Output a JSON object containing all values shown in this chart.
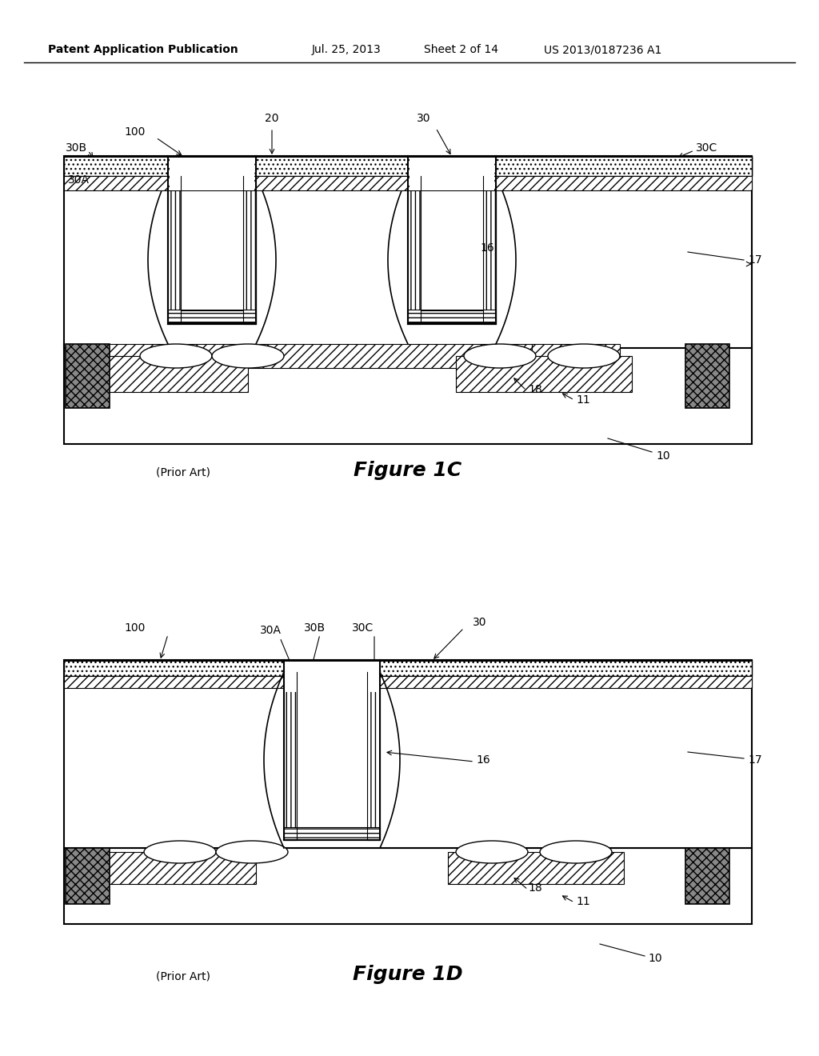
{
  "bg_color": "#ffffff",
  "header_text": "Patent Application Publication",
  "header_date": "Jul. 25, 2013",
  "header_sheet": "Sheet 2 of 14",
  "header_patent": "US 2013/0187236 A1",
  "fig1c_label": "Figure 1C",
  "fig1d_label": "Figure 1D",
  "prior_art": "(Prior Art)"
}
